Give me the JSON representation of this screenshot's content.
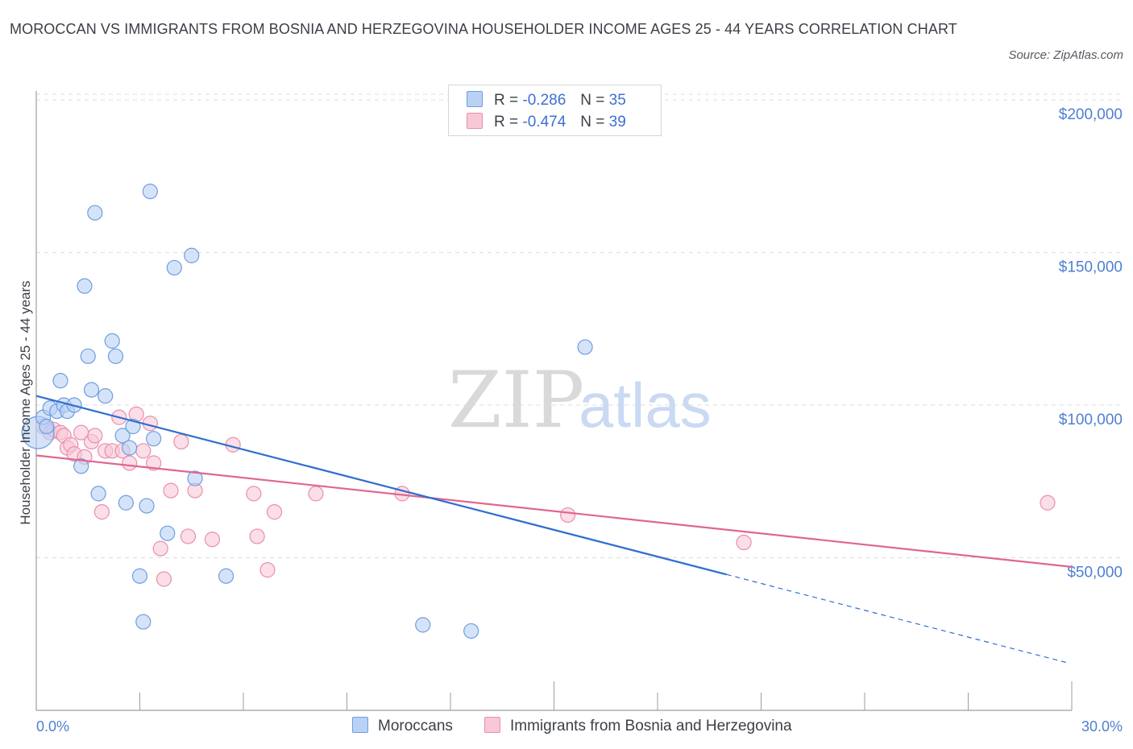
{
  "header": {
    "title": "MOROCCAN VS IMMIGRANTS FROM BOSNIA AND HERZEGOVINA HOUSEHOLDER INCOME AGES 25 - 44 YEARS CORRELATION CHART",
    "source": "Source: ZipAtlas.com"
  },
  "watermark": {
    "zip": "ZIP",
    "atlas": "atlas"
  },
  "legend": {
    "rows": [
      {
        "r_label": "R =",
        "r_value": "-0.286",
        "n_label": "N =",
        "n_value": "35"
      },
      {
        "r_label": "R =",
        "r_value": "-0.474",
        "n_label": "N =",
        "n_value": "39"
      }
    ]
  },
  "colors": {
    "moroccans_fill": "#b9d1f5",
    "moroccans_stroke": "#6e9ee0",
    "moroccans_line": "#2f6fcf",
    "bosnia_fill": "#f8c8d7",
    "bosnia_stroke": "#e88fab",
    "bosnia_line": "#e06690",
    "tick_text": "#4f7fd0",
    "grid": "#dcdcdc"
  },
  "chart_data": {
    "type": "scatter",
    "title": "MOROCCAN VS IMMIGRANTS FROM BOSNIA AND HERZEGOVINA HOUSEHOLDER INCOME AGES 25 - 44 YEARS CORRELATION CHART",
    "xlabel": "",
    "ylabel": "Householder Income Ages 25 - 44 years",
    "xlim": [
      0,
      30
    ],
    "ylim": [
      0,
      205000
    ],
    "y_ticks": [
      50000,
      100000,
      150000,
      200000
    ],
    "y_tick_labels": [
      "$50,000",
      "$100,000",
      "$150,000",
      "$200,000"
    ],
    "x_tick_labels": [
      "0.0%",
      "30.0%"
    ],
    "grid": true,
    "legend_placement": "top-center",
    "series": [
      {
        "name": "Moroccans",
        "points": [
          [
            0.05,
            91000
          ],
          [
            0.2,
            96000
          ],
          [
            0.3,
            93000
          ],
          [
            0.4,
            99000
          ],
          [
            0.6,
            98000
          ],
          [
            0.7,
            108000
          ],
          [
            0.8,
            100000
          ],
          [
            0.9,
            98000
          ],
          [
            1.1,
            100000
          ],
          [
            1.3,
            80000
          ],
          [
            1.4,
            139000
          ],
          [
            1.5,
            116000
          ],
          [
            1.6,
            105000
          ],
          [
            1.7,
            163000
          ],
          [
            1.8,
            71000
          ],
          [
            2.0,
            103000
          ],
          [
            2.2,
            121000
          ],
          [
            2.3,
            116000
          ],
          [
            2.5,
            90000
          ],
          [
            2.6,
            68000
          ],
          [
            2.7,
            86000
          ],
          [
            2.8,
            93000
          ],
          [
            3.0,
            44000
          ],
          [
            3.1,
            29000
          ],
          [
            3.2,
            67000
          ],
          [
            3.3,
            170000
          ],
          [
            3.4,
            89000
          ],
          [
            3.8,
            58000
          ],
          [
            4.0,
            145000
          ],
          [
            4.5,
            149000
          ],
          [
            4.6,
            76000
          ],
          [
            5.5,
            44000
          ],
          [
            11.2,
            28000
          ],
          [
            12.6,
            26000
          ],
          [
            15.9,
            119000
          ]
        ],
        "trend": {
          "x": [
            0,
            20
          ],
          "y": [
            103000,
            44500
          ]
        },
        "trend_extension": {
          "x": [
            20,
            29.9
          ],
          "y": [
            44500,
            15500
          ]
        }
      },
      {
        "name": "Immigrants from Bosnia and Herzegovina",
        "points": [
          [
            0.2,
            93000
          ],
          [
            0.4,
            91000
          ],
          [
            0.5,
            92000
          ],
          [
            0.7,
            91000
          ],
          [
            0.8,
            90000
          ],
          [
            0.9,
            86000
          ],
          [
            1.0,
            87000
          ],
          [
            1.1,
            84000
          ],
          [
            1.3,
            91000
          ],
          [
            1.4,
            83000
          ],
          [
            1.6,
            88000
          ],
          [
            1.7,
            90000
          ],
          [
            1.9,
            65000
          ],
          [
            2.0,
            85000
          ],
          [
            2.2,
            85000
          ],
          [
            2.4,
            96000
          ],
          [
            2.5,
            85000
          ],
          [
            2.7,
            81000
          ],
          [
            2.9,
            97000
          ],
          [
            3.1,
            85000
          ],
          [
            3.3,
            94000
          ],
          [
            3.4,
            81000
          ],
          [
            3.6,
            53000
          ],
          [
            3.7,
            43000
          ],
          [
            3.9,
            72000
          ],
          [
            4.2,
            88000
          ],
          [
            4.4,
            57000
          ],
          [
            4.6,
            72000
          ],
          [
            5.1,
            56000
          ],
          [
            5.7,
            87000
          ],
          [
            6.3,
            71000
          ],
          [
            6.4,
            57000
          ],
          [
            6.7,
            46000
          ],
          [
            6.9,
            65000
          ],
          [
            8.1,
            71000
          ],
          [
            10.6,
            71000
          ],
          [
            15.4,
            64000
          ],
          [
            20.5,
            55000
          ],
          [
            29.3,
            68000
          ]
        ],
        "trend": {
          "x": [
            0,
            30
          ],
          "y": [
            83500,
            47000
          ]
        }
      }
    ]
  },
  "bottom_legend": {
    "moroccans": "Moroccans",
    "bosnia": "Immigrants from Bosnia and Herzegovina"
  }
}
